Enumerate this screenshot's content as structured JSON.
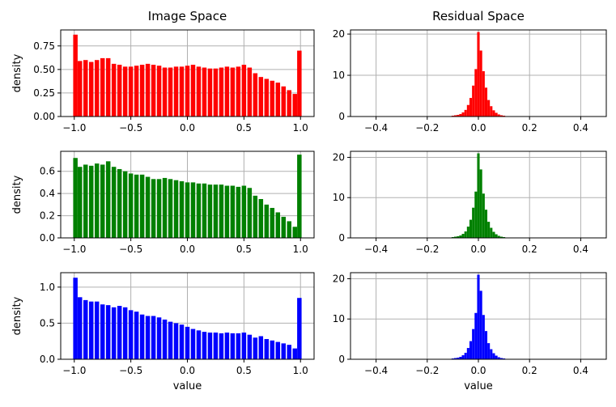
{
  "chart_data": [
    {
      "type": "bar",
      "title": "Image Space",
      "xlabel": "",
      "ylabel": "density",
      "color": "#ff0000",
      "xlim": [
        -1.12,
        1.12
      ],
      "ylim": [
        0,
        0.92
      ],
      "xticks": [
        -1.0,
        -0.5,
        0.0,
        0.5,
        1.0
      ],
      "xtick_labels": [
        "−1.0",
        "−0.5",
        "0.0",
        "0.5",
        "1.0"
      ],
      "yticks": [
        0.0,
        0.25,
        0.5,
        0.75
      ],
      "ytick_labels": [
        "0.00",
        "0.25",
        "0.50",
        "0.75"
      ],
      "grid": true,
      "x": [
        -0.99,
        -0.95,
        -0.9,
        -0.85,
        -0.8,
        -0.75,
        -0.7,
        -0.65,
        -0.6,
        -0.55,
        -0.5,
        -0.45,
        -0.4,
        -0.35,
        -0.3,
        -0.25,
        -0.2,
        -0.15,
        -0.1,
        -0.05,
        0.0,
        0.05,
        0.1,
        0.15,
        0.2,
        0.25,
        0.3,
        0.35,
        0.4,
        0.45,
        0.5,
        0.55,
        0.6,
        0.65,
        0.7,
        0.75,
        0.8,
        0.85,
        0.9,
        0.95,
        0.99
      ],
      "y": [
        0.87,
        0.59,
        0.6,
        0.58,
        0.6,
        0.62,
        0.62,
        0.56,
        0.55,
        0.53,
        0.53,
        0.54,
        0.55,
        0.56,
        0.55,
        0.54,
        0.52,
        0.52,
        0.53,
        0.53,
        0.54,
        0.55,
        0.53,
        0.52,
        0.51,
        0.51,
        0.52,
        0.53,
        0.52,
        0.53,
        0.55,
        0.52,
        0.46,
        0.42,
        0.4,
        0.38,
        0.36,
        0.32,
        0.28,
        0.24,
        0.7
      ]
    },
    {
      "type": "bar",
      "title": "Residual Space",
      "xlabel": "",
      "ylabel": "",
      "color": "#ff0000",
      "xlim": [
        -0.5,
        0.5
      ],
      "ylim": [
        0,
        21
      ],
      "xticks": [
        -0.4,
        -0.2,
        0.0,
        0.2,
        0.4
      ],
      "xtick_labels": [
        "−0.4",
        "−0.2",
        "0.0",
        "0.2",
        "0.4"
      ],
      "yticks": [
        0,
        10,
        20
      ],
      "ytick_labels": [
        "0",
        "10",
        "20"
      ],
      "grid": true,
      "x": [
        -0.1,
        -0.09,
        -0.08,
        -0.07,
        -0.06,
        -0.05,
        -0.04,
        -0.03,
        -0.02,
        -0.01,
        0.0,
        0.01,
        0.02,
        0.03,
        0.04,
        0.05,
        0.06,
        0.07,
        0.08,
        0.09,
        0.1
      ],
      "y": [
        0.2,
        0.3,
        0.4,
        0.6,
        1.0,
        1.6,
        2.8,
        4.5,
        7.5,
        11.5,
        20.5,
        16.0,
        11.0,
        7.0,
        4.0,
        2.5,
        1.5,
        0.9,
        0.5,
        0.3,
        0.2
      ]
    },
    {
      "type": "bar",
      "title": "",
      "xlabel": "",
      "ylabel": "density",
      "color": "#008000",
      "xlim": [
        -1.12,
        1.12
      ],
      "ylim": [
        0,
        0.78
      ],
      "xticks": [
        -1.0,
        -0.5,
        0.0,
        0.5,
        1.0
      ],
      "xtick_labels": [
        "−1.0",
        "−0.5",
        "0.0",
        "0.5",
        "1.0"
      ],
      "yticks": [
        0.0,
        0.2,
        0.4,
        0.6
      ],
      "ytick_labels": [
        "0.0",
        "0.2",
        "0.4",
        "0.6"
      ],
      "grid": true,
      "x": [
        -0.99,
        -0.95,
        -0.9,
        -0.85,
        -0.8,
        -0.75,
        -0.7,
        -0.65,
        -0.6,
        -0.55,
        -0.5,
        -0.45,
        -0.4,
        -0.35,
        -0.3,
        -0.25,
        -0.2,
        -0.15,
        -0.1,
        -0.05,
        0.0,
        0.05,
        0.1,
        0.15,
        0.2,
        0.25,
        0.3,
        0.35,
        0.4,
        0.45,
        0.5,
        0.55,
        0.6,
        0.65,
        0.7,
        0.75,
        0.8,
        0.85,
        0.9,
        0.95,
        0.99
      ],
      "y": [
        0.72,
        0.64,
        0.66,
        0.65,
        0.67,
        0.66,
        0.69,
        0.64,
        0.62,
        0.6,
        0.58,
        0.57,
        0.57,
        0.55,
        0.53,
        0.53,
        0.54,
        0.53,
        0.52,
        0.51,
        0.5,
        0.5,
        0.49,
        0.49,
        0.48,
        0.48,
        0.48,
        0.47,
        0.47,
        0.46,
        0.47,
        0.45,
        0.38,
        0.35,
        0.3,
        0.27,
        0.23,
        0.19,
        0.15,
        0.1,
        0.75
      ]
    },
    {
      "type": "bar",
      "title": "",
      "xlabel": "",
      "ylabel": "",
      "color": "#008000",
      "xlim": [
        -0.5,
        0.5
      ],
      "ylim": [
        0,
        21.5
      ],
      "xticks": [
        -0.4,
        -0.2,
        0.0,
        0.2,
        0.4
      ],
      "xtick_labels": [
        "−0.4",
        "−0.2",
        "0.0",
        "0.2",
        "0.4"
      ],
      "yticks": [
        0,
        10,
        20
      ],
      "ytick_labels": [
        "0",
        "10",
        "20"
      ],
      "grid": true,
      "x": [
        -0.1,
        -0.09,
        -0.08,
        -0.07,
        -0.06,
        -0.05,
        -0.04,
        -0.03,
        -0.02,
        -0.01,
        0.0,
        0.01,
        0.02,
        0.03,
        0.04,
        0.05,
        0.06,
        0.07,
        0.08,
        0.09,
        0.1
      ],
      "y": [
        0.2,
        0.3,
        0.4,
        0.6,
        1.0,
        1.6,
        2.8,
        4.5,
        7.5,
        11.5,
        21.0,
        17.0,
        11.0,
        7.0,
        4.0,
        2.5,
        1.5,
        0.9,
        0.5,
        0.3,
        0.2
      ]
    },
    {
      "type": "bar",
      "title": "",
      "xlabel": "value",
      "ylabel": "density",
      "color": "#0000ff",
      "xlim": [
        -1.12,
        1.12
      ],
      "ylim": [
        0,
        1.2
      ],
      "xticks": [
        -1.0,
        -0.5,
        0.0,
        0.5,
        1.0
      ],
      "xtick_labels": [
        "−1.0",
        "−0.5",
        "0.0",
        "0.5",
        "1.0"
      ],
      "yticks": [
        0.0,
        0.5,
        1.0
      ],
      "ytick_labels": [
        "0.0",
        "0.5",
        "1.0"
      ],
      "grid": true,
      "x": [
        -0.99,
        -0.95,
        -0.9,
        -0.85,
        -0.8,
        -0.75,
        -0.7,
        -0.65,
        -0.6,
        -0.55,
        -0.5,
        -0.45,
        -0.4,
        -0.35,
        -0.3,
        -0.25,
        -0.2,
        -0.15,
        -0.1,
        -0.05,
        0.0,
        0.05,
        0.1,
        0.15,
        0.2,
        0.25,
        0.3,
        0.35,
        0.4,
        0.45,
        0.5,
        0.55,
        0.6,
        0.65,
        0.7,
        0.75,
        0.8,
        0.85,
        0.9,
        0.95,
        0.99
      ],
      "y": [
        1.13,
        0.86,
        0.82,
        0.8,
        0.8,
        0.76,
        0.75,
        0.72,
        0.74,
        0.72,
        0.68,
        0.66,
        0.62,
        0.6,
        0.6,
        0.58,
        0.55,
        0.52,
        0.5,
        0.48,
        0.45,
        0.42,
        0.4,
        0.38,
        0.37,
        0.37,
        0.36,
        0.37,
        0.36,
        0.36,
        0.37,
        0.34,
        0.3,
        0.32,
        0.28,
        0.26,
        0.24,
        0.22,
        0.2,
        0.15,
        0.85
      ]
    },
    {
      "type": "bar",
      "title": "",
      "xlabel": "value",
      "ylabel": "",
      "color": "#0000ff",
      "xlim": [
        -0.5,
        0.5
      ],
      "ylim": [
        0,
        21.5
      ],
      "xticks": [
        -0.4,
        -0.2,
        0.0,
        0.2,
        0.4
      ],
      "xtick_labels": [
        "−0.4",
        "−0.2",
        "0.0",
        "0.2",
        "0.4"
      ],
      "yticks": [
        0,
        10,
        20
      ],
      "ytick_labels": [
        "0",
        "10",
        "20"
      ],
      "grid": true,
      "x": [
        -0.1,
        -0.09,
        -0.08,
        -0.07,
        -0.06,
        -0.05,
        -0.04,
        -0.03,
        -0.02,
        -0.01,
        0.0,
        0.01,
        0.02,
        0.03,
        0.04,
        0.05,
        0.06,
        0.07,
        0.08,
        0.09,
        0.1
      ],
      "y": [
        0.2,
        0.3,
        0.4,
        0.6,
        1.0,
        1.6,
        2.8,
        4.5,
        7.5,
        11.5,
        21.0,
        17.0,
        11.0,
        7.0,
        4.0,
        2.5,
        1.5,
        0.9,
        0.5,
        0.3,
        0.2
      ]
    }
  ]
}
